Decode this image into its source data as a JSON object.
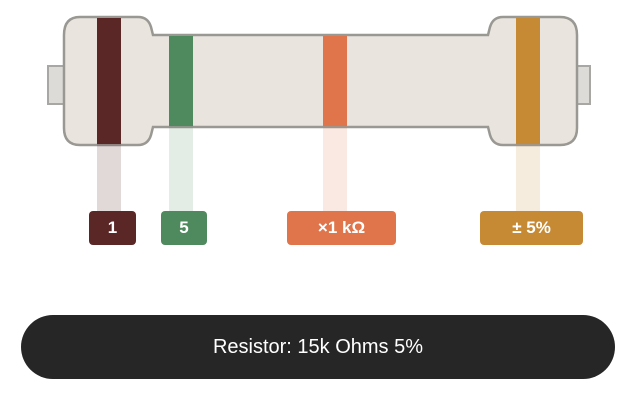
{
  "bands": [
    {
      "label": "1",
      "color": "#5a2626"
    },
    {
      "label": "5",
      "color": "#4f8a5f"
    },
    {
      "label": "×1 kΩ",
      "color": "#e0744a"
    },
    {
      "label": "± 5%",
      "color": "#c78a34"
    }
  ],
  "result": {
    "text": "Resistor: 15k Ohms 5%"
  }
}
